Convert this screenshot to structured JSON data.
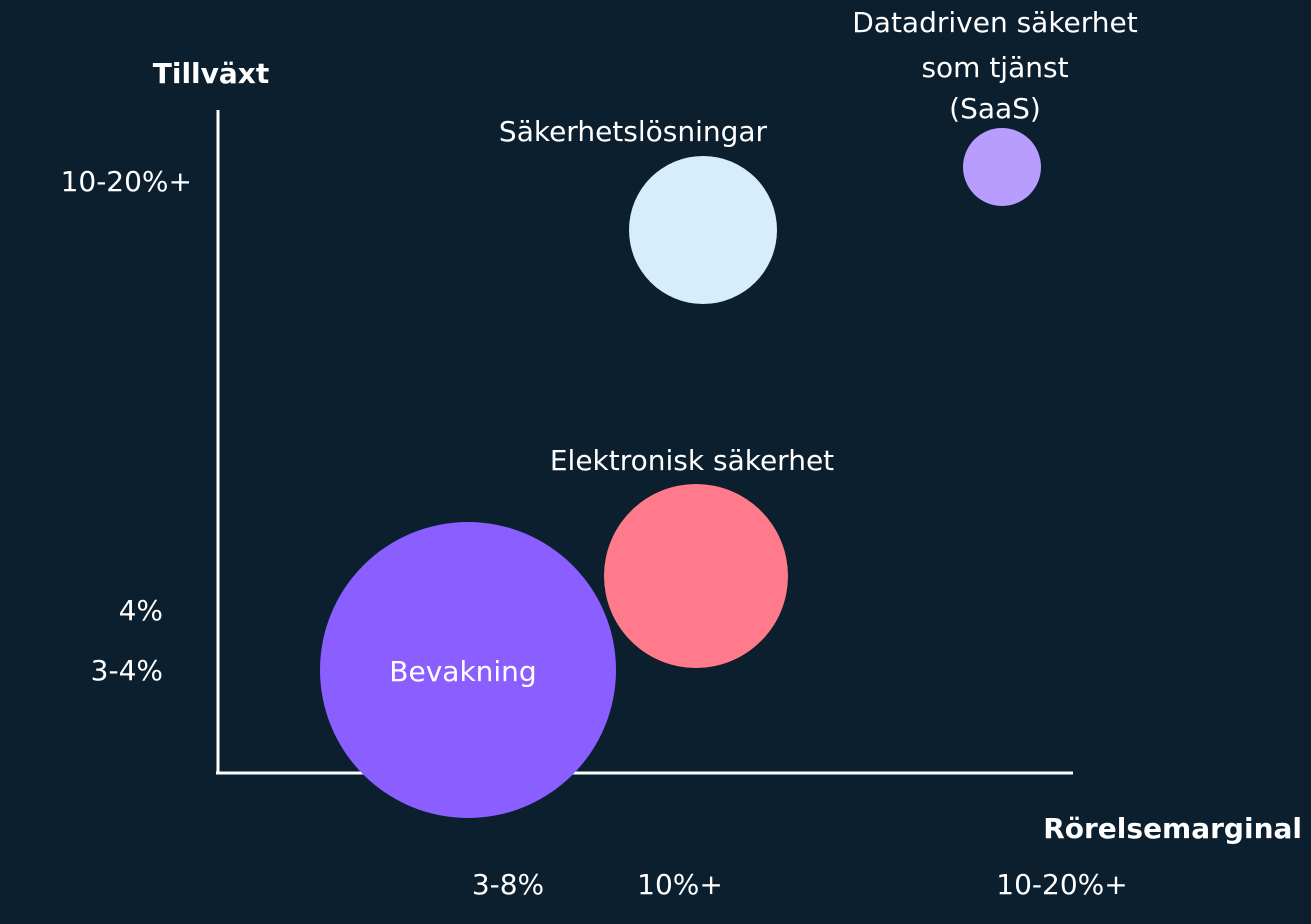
{
  "axes": {
    "y_label": "Tillväxt",
    "x_label": "Rörelsemarginal",
    "y_ticks": [
      "10-20%+",
      "4%",
      "3-4%"
    ],
    "x_ticks": [
      "3-8%",
      "10%+",
      "10-20%+"
    ]
  },
  "bubbles": [
    {
      "label": [
        "Bevakning"
      ],
      "color": "#8b5fff"
    },
    {
      "label": [
        "Elektronisk säkerhet"
      ],
      "color": "#ff7b8b"
    },
    {
      "label": [
        "Säkerhetslösningar"
      ],
      "color": "#d6edfb"
    },
    {
      "label": [
        "Datadriven säkerhet",
        "som tjänst",
        "(SaaS)"
      ],
      "color": "#b89dff"
    }
  ]
}
